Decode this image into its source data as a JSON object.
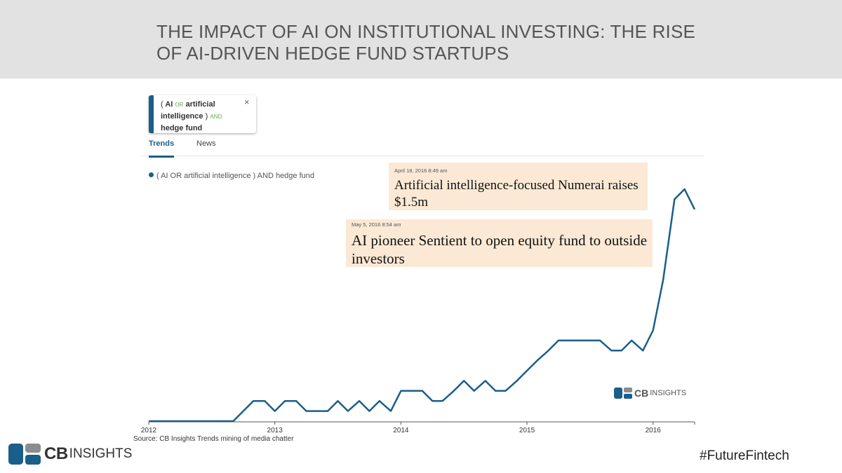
{
  "header": {
    "title": "THE IMPACT OF AI ON INSTITUTIONAL INVESTING: THE RISE OF AI-DRIVEN HEDGE FUND STARTUPS"
  },
  "query": {
    "open_paren": "(",
    "term1": "AI",
    "op_or": "OR",
    "term2": "artificial intelligence",
    "close_paren": ")",
    "op_and": "AND",
    "term3": "hedge fund",
    "close_symbol": "×"
  },
  "tabs": {
    "trends": "Trends",
    "news": "News"
  },
  "headlines": [
    {
      "date": "April 18, 2016 8:49 am",
      "text": "Artificial intelligence-focused Numerai raises $1.5m"
    },
    {
      "date": "May 5, 2016 8:54 am",
      "text": "AI pioneer Sentient to open equity fund to outside investors"
    }
  ],
  "watermark": {
    "brand_bold": "CB",
    "brand_light": "INSIGHTS"
  },
  "source": "Source: CB Insights Trends mining of media chatter",
  "logo": {
    "brand_bold": "CB",
    "brand_light": "INSIGHTS"
  },
  "hashtag": "#FutureFintech",
  "colors": {
    "line": "#1a5e8a",
    "header_bg": "#e2e2e2",
    "headline_bg": "#fbe9d5",
    "logo_blue": "#1a5e8a",
    "logo_gray": "#8c8c8c"
  },
  "chart_data": {
    "type": "line",
    "title": "",
    "xlabel": "",
    "ylabel": "",
    "x_ticks": [
      "2012",
      "2013",
      "2014",
      "2015",
      "2016"
    ],
    "xlim": [
      2012.0,
      2016.33
    ],
    "ylim": [
      0,
      22
    ],
    "legend": "top-left",
    "grid": false,
    "series": [
      {
        "name": "( AI OR artificial intelligence ) AND hedge fund",
        "x": [
          2012.0,
          2012.67,
          2012.83,
          2012.92,
          2013.0,
          2013.08,
          2013.17,
          2013.25,
          2013.33,
          2013.42,
          2013.5,
          2013.58,
          2013.67,
          2013.75,
          2013.83,
          2013.92,
          2014.0,
          2014.08,
          2014.17,
          2014.25,
          2014.33,
          2014.42,
          2014.5,
          2014.58,
          2014.67,
          2014.75,
          2014.83,
          2014.92,
          2015.0,
          2015.08,
          2015.17,
          2015.25,
          2015.33,
          2015.42,
          2015.5,
          2015.58,
          2015.67,
          2015.75,
          2015.83,
          2015.92,
          2016.0,
          2016.08,
          2016.17,
          2016.25,
          2016.33
        ],
        "values": [
          0,
          0,
          2,
          2,
          1,
          2,
          2,
          1,
          1,
          1,
          2,
          1,
          2,
          1,
          2,
          1,
          3,
          3,
          3,
          2,
          2,
          3,
          4,
          3,
          4,
          3,
          3,
          4,
          5,
          6,
          7,
          8,
          8,
          8,
          8,
          8,
          7,
          7,
          8,
          7,
          9,
          14,
          22,
          23,
          21
        ]
      }
    ]
  }
}
